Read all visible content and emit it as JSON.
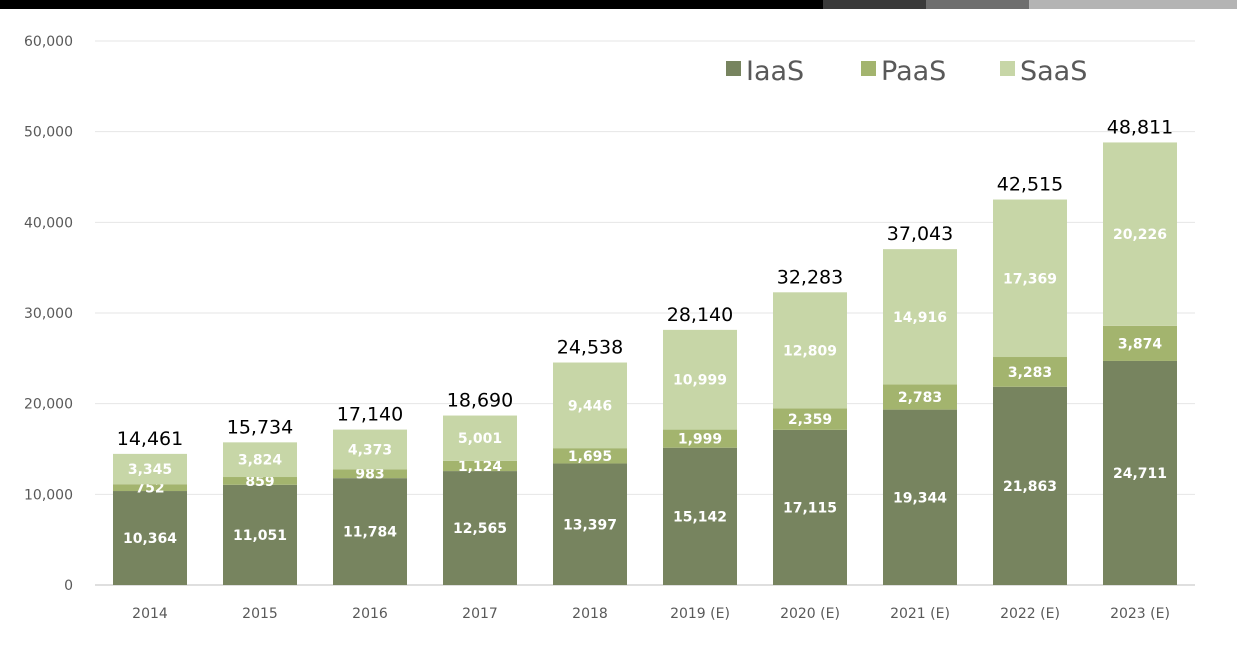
{
  "chart_data": {
    "type": "bar",
    "stacked": true,
    "categories": [
      "2014",
      "2015",
      "2016",
      "2017",
      "2018",
      "2019 (E)",
      "2020 (E)",
      "2021 (E)",
      "2022 (E)",
      "2023 (E)"
    ],
    "series": [
      {
        "name": "IaaS",
        "color": "#77845f",
        "values": [
          10364,
          11051,
          11784,
          12565,
          13397,
          15142,
          17115,
          19344,
          21863,
          24711
        ]
      },
      {
        "name": "PaaS",
        "color": "#a3b46e",
        "values": [
          752,
          859,
          983,
          1124,
          1695,
          1999,
          2359,
          2783,
          3283,
          3874
        ]
      },
      {
        "name": "SaaS",
        "color": "#c7d6a7",
        "values": [
          3345,
          3824,
          4373,
          5001,
          9446,
          10999,
          12809,
          14916,
          17369,
          20226
        ]
      }
    ],
    "totals": [
      14461,
      15734,
      17140,
      18690,
      24538,
      28140,
      32283,
      37043,
      42515,
      48811
    ],
    "ylim": [
      0,
      60000
    ],
    "yticks": [
      0,
      10000,
      20000,
      30000,
      40000,
      50000,
      60000
    ],
    "title": "",
    "xlabel": "",
    "ylabel": "",
    "grid": true,
    "legend_position": "top-right"
  },
  "decor": {
    "topbar_colors": [
      "#000000",
      "#3a3a3a",
      "#6e6e6e",
      "#b4b4b4"
    ]
  }
}
